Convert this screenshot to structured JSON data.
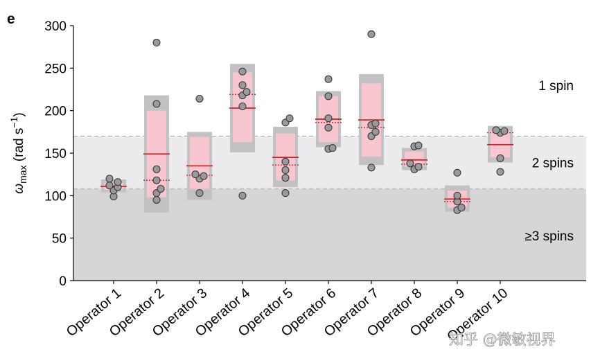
{
  "panel_label": "e",
  "watermark": "知乎 @微敏视界",
  "colors": {
    "zone_multi": "#d6d6d8",
    "zone_two": "#ebebed",
    "band_outer": "#c2c2c4",
    "band_inner": "#f7c6cf",
    "median_line": "#d0242e",
    "mean_line": "#d0242e",
    "point_fill": "#9a9a9c",
    "point_stroke": "#303030",
    "threshold_line": "#b0b0b0"
  },
  "chart_data": {
    "type": "scatter",
    "ylabel": {
      "symbol": "ω",
      "subscript": "max",
      "unit_main": " (rad s",
      "unit_sup": "−1",
      "unit_end": ")"
    },
    "ylim": [
      0,
      300
    ],
    "yticks": [
      0,
      50,
      100,
      150,
      200,
      250,
      300
    ],
    "categories": [
      "Operator 1",
      "Operator 2",
      "Operator 3",
      "Operator 4",
      "Operator 5",
      "Operator 6",
      "Operator 7",
      "Operator 8",
      "Operator 9",
      "Operator 10"
    ],
    "zones": [
      {
        "label": "1 spin",
        "from": 170,
        "to": 300,
        "label_y": 230
      },
      {
        "label": "2 spins",
        "from": 108,
        "to": 170,
        "label_y": 139
      },
      {
        "label": "≥3 spins",
        "from": 0,
        "to": 108,
        "label_y": 53
      }
    ],
    "thresholds": [
      170,
      108
    ],
    "operators": [
      {
        "name": "Operator 1",
        "outer": [
          104,
          119
        ],
        "inner": [
          107,
          115
        ],
        "median": 111,
        "mean": 111,
        "points": [
          99,
          106,
          110,
          112,
          116,
          120
        ]
      },
      {
        "name": "Operator 2",
        "outer": [
          80,
          218
        ],
        "inner": [
          98,
          200
        ],
        "median": 149,
        "mean": 118,
        "points": [
          95,
          103,
          108,
          118,
          131,
          208,
          280
        ]
      },
      {
        "name": "Operator 3",
        "outer": [
          95,
          175
        ],
        "inner": [
          108,
          169
        ],
        "median": 135,
        "mean": 124,
        "points": [
          103,
          120,
          123,
          125,
          214
        ]
      },
      {
        "name": "Operator 4",
        "outer": [
          151,
          255
        ],
        "inner": [
          163,
          245
        ],
        "median": 203,
        "mean": 219,
        "points": [
          100,
          205,
          218,
          222,
          230,
          246
        ]
      },
      {
        "name": "Operator 5",
        "outer": [
          110,
          181
        ],
        "inner": [
          118,
          173
        ],
        "median": 145,
        "mean": 136,
        "points": [
          103,
          121,
          130,
          140,
          186,
          191
        ]
      },
      {
        "name": "Operator 6",
        "outer": [
          157,
          223
        ],
        "inner": [
          163,
          217
        ],
        "median": 190,
        "mean": 186,
        "points": [
          155,
          156,
          180,
          191,
          217,
          237
        ]
      },
      {
        "name": "Operator 7",
        "outer": [
          136,
          243
        ],
        "inner": [
          146,
          232
        ],
        "median": 189,
        "mean": 180,
        "points": [
          133,
          170,
          175,
          183,
          185,
          290
        ]
      },
      {
        "name": "Operator 8",
        "outer": [
          130,
          156
        ],
        "inner": [
          134,
          152
        ],
        "median": 142,
        "mean": 137,
        "points": [
          131,
          134,
          138,
          158,
          159
        ]
      },
      {
        "name": "Operator 9",
        "outer": [
          81,
          112
        ],
        "inner": [
          86,
          106
        ],
        "median": 96,
        "mean": 93,
        "points": [
          83,
          86,
          93,
          100,
          127
        ]
      },
      {
        "name": "Operator 10",
        "outer": [
          139,
          182
        ],
        "inner": [
          145,
          177
        ],
        "median": 160,
        "mean": 174,
        "points": [
          128,
          144,
          174,
          176,
          177
        ]
      }
    ]
  }
}
